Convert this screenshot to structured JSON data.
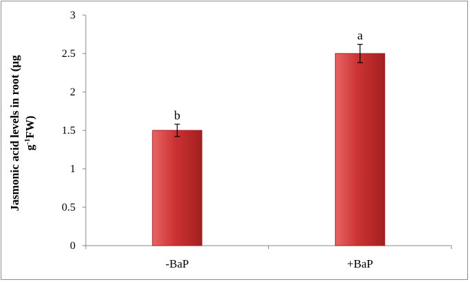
{
  "chart_data": {
    "type": "bar",
    "categories": [
      "-BaP",
      "+BaP"
    ],
    "values": [
      1.5,
      2.5
    ],
    "errors": [
      0.08,
      0.12
    ],
    "significance_letters": [
      "b",
      "a"
    ],
    "title": "",
    "xlabel": "",
    "ylabel": {
      "line1": "Jasmonic acid levels in root (µg",
      "line2_prefix": "g",
      "line2_sup": "-1",
      "line2_suffix": "FW)"
    },
    "ylim": [
      0,
      3
    ],
    "yticks": [
      {
        "value": 0,
        "label": "0"
      },
      {
        "value": 0.5,
        "label": "0.5"
      },
      {
        "value": 1,
        "label": "1"
      },
      {
        "value": 1.5,
        "label": "1.5"
      },
      {
        "value": 2,
        "label": "2"
      },
      {
        "value": 2.5,
        "label": "2.5"
      },
      {
        "value": 3,
        "label": "3"
      }
    ],
    "grid": false,
    "legend": "none",
    "colors": {
      "bar_light": "#e86464",
      "bar_mid": "#cc3333",
      "bar_dark": "#a31f1f",
      "axis": "#868686"
    }
  }
}
